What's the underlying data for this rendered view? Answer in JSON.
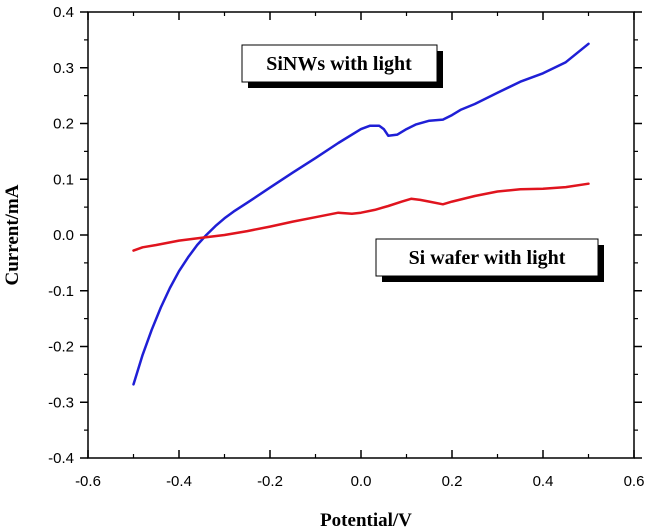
{
  "chart_data": {
    "type": "line",
    "title": "",
    "xlabel": "Potential/V",
    "ylabel": "Current/mA",
    "xlim": [
      -0.6,
      0.6
    ],
    "ylim": [
      -0.4,
      0.4
    ],
    "x_ticks": [
      "-0.6",
      "-0.4",
      "-0.2",
      "0.0",
      "0.2",
      "0.4",
      "0.6"
    ],
    "y_ticks": [
      "-0.4",
      "-0.3",
      "-0.2",
      "-0.1",
      "0.0",
      "0.1",
      "0.2",
      "0.3",
      "0.4"
    ],
    "grid": false,
    "legend": "none",
    "series": [
      {
        "name": "SiNWs with light",
        "color": "#1f1fd6",
        "x": [
          -0.5,
          -0.48,
          -0.46,
          -0.44,
          -0.42,
          -0.4,
          -0.38,
          -0.36,
          -0.34,
          -0.32,
          -0.3,
          -0.28,
          -0.25,
          -0.2,
          -0.15,
          -0.1,
          -0.05,
          0.0,
          0.02,
          0.04,
          0.05,
          0.06,
          0.08,
          0.1,
          0.12,
          0.15,
          0.18,
          0.2,
          0.22,
          0.25,
          0.3,
          0.35,
          0.4,
          0.45,
          0.5
        ],
        "y": [
          -0.268,
          -0.215,
          -0.17,
          -0.13,
          -0.095,
          -0.065,
          -0.04,
          -0.018,
          0.0,
          0.016,
          0.03,
          0.042,
          0.058,
          0.085,
          0.112,
          0.138,
          0.165,
          0.19,
          0.196,
          0.196,
          0.19,
          0.178,
          0.18,
          0.19,
          0.198,
          0.205,
          0.207,
          0.215,
          0.225,
          0.235,
          0.255,
          0.275,
          0.29,
          0.31,
          0.343
        ]
      },
      {
        "name": "Si wafer with light",
        "color": "#e0141e",
        "x": [
          -0.5,
          -0.48,
          -0.45,
          -0.4,
          -0.35,
          -0.3,
          -0.25,
          -0.2,
          -0.15,
          -0.1,
          -0.05,
          -0.02,
          0.0,
          0.03,
          0.06,
          0.09,
          0.11,
          0.13,
          0.15,
          0.18,
          0.2,
          0.25,
          0.3,
          0.35,
          0.4,
          0.45,
          0.5
        ],
        "y": [
          -0.028,
          -0.022,
          -0.018,
          -0.01,
          -0.005,
          0.0,
          0.007,
          0.015,
          0.024,
          0.032,
          0.04,
          0.038,
          0.04,
          0.045,
          0.052,
          0.06,
          0.065,
          0.063,
          0.06,
          0.055,
          0.06,
          0.07,
          0.078,
          0.082,
          0.083,
          0.086,
          0.092
        ]
      }
    ],
    "annotations": [
      {
        "text": "SiNWs with light",
        "series": "SiNWs with light"
      },
      {
        "text": "Si wafer with light",
        "series": "Si wafer with light"
      }
    ]
  }
}
